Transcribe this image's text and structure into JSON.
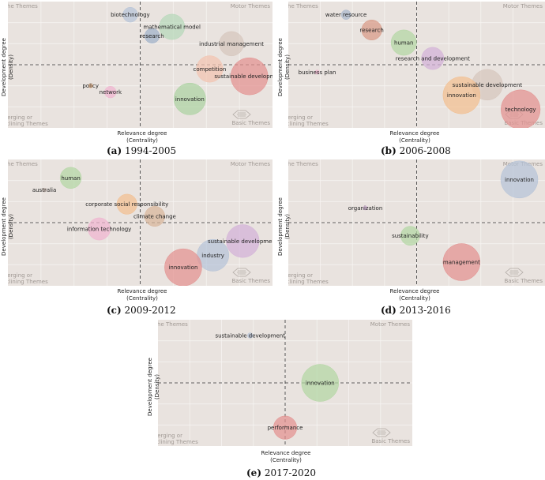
{
  "axis_text": {
    "x_line1": "Relevance degree",
    "x_line2": "(Centrality)",
    "y_line1": "Development degree",
    "y_line2": "(Density)"
  },
  "quadrant_text": {
    "top_left": "Niche Themes",
    "top_right": "Motor Themes",
    "bottom_left_1": "Emerging or",
    "bottom_left_2": "Declining Themes",
    "bottom_right": "Basic Themes"
  },
  "colors": {
    "background": "#e9e3df",
    "grid": "#f6f3f1"
  },
  "chart_data": [
    {
      "type": "scatter",
      "label": "(a)",
      "period": "1994-2005",
      "points": [
        {
          "name": "biotechnology",
          "x": -0.15,
          "y": 0.95,
          "size": 0.28,
          "color": "#b6c4d8"
        },
        {
          "name": "mathematical model",
          "x": 0.48,
          "y": 0.72,
          "size": 0.48,
          "color": "#b6d8ba"
        },
        {
          "name": "research",
          "x": 0.18,
          "y": 0.55,
          "size": 0.28,
          "color": "#9fb1c9"
        },
        {
          "name": "industrial management",
          "x": 1.38,
          "y": 0.4,
          "size": 0.46,
          "color": "#d6c6bc"
        },
        {
          "name": "competition",
          "x": 1.05,
          "y": -0.08,
          "size": 0.5,
          "color": "#f3c4b0"
        },
        {
          "name": "sustainable development",
          "x": 1.65,
          "y": -0.22,
          "size": 0.7,
          "color": "#e39290"
        },
        {
          "name": "policy",
          "x": -0.75,
          "y": -0.4,
          "size": 0.08,
          "color": "#f2b987"
        },
        {
          "name": "network",
          "x": -0.45,
          "y": -0.52,
          "size": 0.22,
          "color": "#f0b4d0"
        },
        {
          "name": "innovation",
          "x": 0.75,
          "y": -0.65,
          "size": 0.6,
          "color": "#acd3a2"
        }
      ]
    },
    {
      "type": "scatter",
      "label": "(b)",
      "period": "2006-2008",
      "points": [
        {
          "name": "water resource",
          "x": -1.1,
          "y": 0.95,
          "size": 0.18,
          "color": "#a9b7cc"
        },
        {
          "name": "research",
          "x": -0.7,
          "y": 0.66,
          "size": 0.38,
          "color": "#d89a86"
        },
        {
          "name": "human",
          "x": -0.2,
          "y": 0.42,
          "size": 0.48,
          "color": "#b3d7a4"
        },
        {
          "name": "research and development",
          "x": 0.25,
          "y": 0.12,
          "size": 0.42,
          "color": "#d3b1d8"
        },
        {
          "name": "business plan",
          "x": -1.55,
          "y": -0.14,
          "size": 0.08,
          "color": "#f0b4d0"
        },
        {
          "name": "sustainable development",
          "x": 1.1,
          "y": -0.38,
          "size": 0.58,
          "color": "#d6c6bc"
        },
        {
          "name": "innovation",
          "x": 0.7,
          "y": -0.58,
          "size": 0.7,
          "color": "#f2bf90"
        },
        {
          "name": "technology",
          "x": 1.62,
          "y": -0.85,
          "size": 0.74,
          "color": "#e39290"
        }
      ]
    },
    {
      "type": "scatter",
      "label": "(c)",
      "period": "2009-2012",
      "points": [
        {
          "name": "human",
          "x": -1.05,
          "y": 0.85,
          "size": 0.4,
          "color": "#b3d7a4"
        },
        {
          "name": "australia",
          "x": -1.45,
          "y": 0.62,
          "size": 0.06,
          "color": "#c8b8b0"
        },
        {
          "name": "corporate social responsibility",
          "x": -0.2,
          "y": 0.35,
          "size": 0.38,
          "color": "#f2bf90"
        },
        {
          "name": "climate change",
          "x": 0.22,
          "y": 0.12,
          "size": 0.38,
          "color": "#d8b59a"
        },
        {
          "name": "information technology",
          "x": -0.62,
          "y": -0.12,
          "size": 0.42,
          "color": "#f0b4d0"
        },
        {
          "name": "sustainable development",
          "x": 1.55,
          "y": -0.35,
          "size": 0.62,
          "color": "#d3b1d8"
        },
        {
          "name": "industry",
          "x": 1.1,
          "y": -0.62,
          "size": 0.6,
          "color": "#b6c4d8"
        },
        {
          "name": "innovation",
          "x": 0.65,
          "y": -0.85,
          "size": 0.7,
          "color": "#e39290"
        }
      ]
    },
    {
      "type": "scatter",
      "label": "(d)",
      "period": "2013-2016",
      "points": [
        {
          "name": "innovation",
          "x": 1.6,
          "y": 0.82,
          "size": 0.7,
          "color": "#b6c4d8"
        },
        {
          "name": "organization",
          "x": -0.8,
          "y": 0.28,
          "size": 0.08,
          "color": "#d3b1d8"
        },
        {
          "name": "sustainability",
          "x": -0.1,
          "y": -0.25,
          "size": 0.36,
          "color": "#b3d7a4"
        },
        {
          "name": "management",
          "x": 0.7,
          "y": -0.75,
          "size": 0.7,
          "color": "#e39290"
        }
      ]
    },
    {
      "type": "scatter",
      "label": "(e)",
      "period": "2017-2020",
      "points": [
        {
          "name": "sustainable development",
          "x": -0.55,
          "y": 0.9,
          "size": 0.1,
          "color": "#b6c4d8"
        },
        {
          "name": "innovation",
          "x": 0.55,
          "y": 0.0,
          "size": 0.7,
          "color": "#b3d7a4"
        },
        {
          "name": "performance",
          "x": 0.0,
          "y": -0.85,
          "size": 0.44,
          "color": "#e39290"
        }
      ]
    }
  ]
}
